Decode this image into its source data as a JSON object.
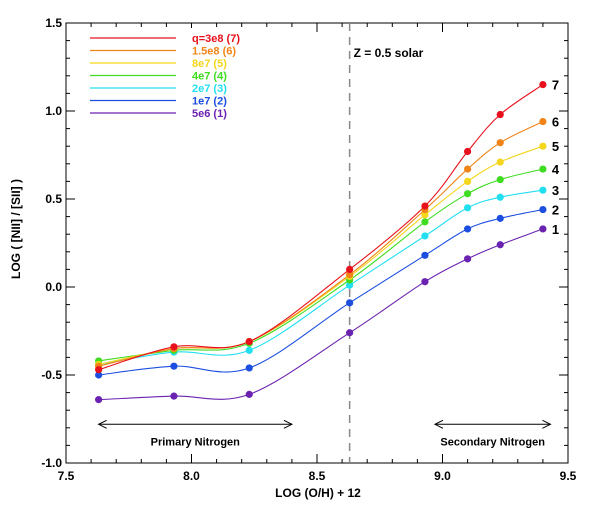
{
  "chart_data": {
    "type": "scatter",
    "title": "",
    "xlabel": "LOG (O/H) + 12",
    "ylabel": "LOG ( [NII] / [SII] )",
    "xlim": [
      7.5,
      9.5
    ],
    "ylim": [
      -1.0,
      1.5
    ],
    "x_ticks": [
      "7.5",
      "8.0",
      "8.5",
      "9.0",
      "9.5"
    ],
    "y_ticks": [
      "-1.0",
      "-0.5",
      "0.0",
      "0.5",
      "1.0",
      "1.5"
    ],
    "grid": false,
    "legend_position": "top-left",
    "x": [
      7.63,
      7.93,
      8.23,
      8.63,
      8.93,
      9.1,
      9.23,
      9.4
    ],
    "series": [
      {
        "name": "q=3e8 (7)",
        "end_label": "7",
        "color": "#e8101c",
        "values": [
          -0.47,
          -0.34,
          -0.31,
          0.1,
          0.46,
          0.77,
          0.98,
          1.15
        ]
      },
      {
        "name": "1.5e8 (6)",
        "end_label": "6",
        "color": "#f08418",
        "values": [
          -0.45,
          -0.35,
          -0.31,
          0.07,
          0.44,
          0.67,
          0.82,
          0.94
        ]
      },
      {
        "name": "8e7 (5)",
        "end_label": "5",
        "color": "#f4d61c",
        "values": [
          -0.44,
          -0.35,
          -0.31,
          0.06,
          0.41,
          0.6,
          0.71,
          0.8
        ]
      },
      {
        "name": "4e7 (4)",
        "end_label": "4",
        "color": "#40dc22",
        "values": [
          -0.42,
          -0.36,
          -0.32,
          0.04,
          0.37,
          0.53,
          0.61,
          0.67
        ]
      },
      {
        "name": "2e7 (3)",
        "end_label": "3",
        "color": "#22dff0",
        "values": [
          -0.44,
          -0.37,
          -0.36,
          0.01,
          0.29,
          0.45,
          0.51,
          0.55
        ]
      },
      {
        "name": "1e7 (2)",
        "end_label": "2",
        "color": "#1c4ee0",
        "values": [
          -0.5,
          -0.45,
          -0.46,
          -0.09,
          0.18,
          0.33,
          0.39,
          0.44
        ]
      },
      {
        "name": "5e6 (1)",
        "end_label": "1",
        "color": "#6a22b0",
        "values": [
          -0.64,
          -0.62,
          -0.61,
          -0.26,
          0.03,
          0.16,
          0.24,
          0.33
        ]
      }
    ],
    "vline": {
      "x": 8.63,
      "label": "Z = 0.5 solar"
    },
    "annotations": [
      {
        "text": "Primary Nitrogen",
        "arrow_from": 7.63,
        "arrow_to": 8.4,
        "y": -0.78
      },
      {
        "text": "Secondary Nitrogen",
        "arrow_from": 8.97,
        "arrow_to": 9.43,
        "y": -0.78
      }
    ]
  }
}
